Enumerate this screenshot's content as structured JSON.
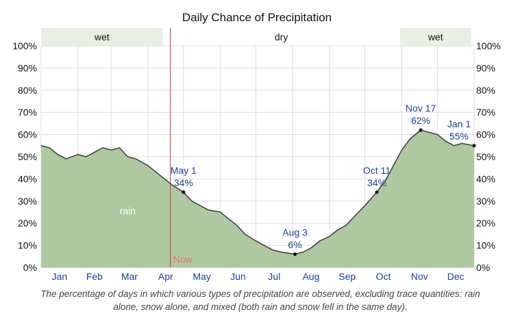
{
  "chart_data": {
    "type": "area",
    "title": "Daily Chance of Precipitation",
    "y_ticks": [
      "0%",
      "10%",
      "20%",
      "30%",
      "40%",
      "50%",
      "60%",
      "70%",
      "80%",
      "90%",
      "100%"
    ],
    "ylim": [
      0,
      100
    ],
    "months": [
      "Jan",
      "Feb",
      "Mar",
      "Apr",
      "May",
      "Jun",
      "Jul",
      "Aug",
      "Sep",
      "Oct",
      "Nov",
      "Dec"
    ],
    "seasons": [
      {
        "label": "wet",
        "start_day": 1,
        "end_day": 42
      },
      {
        "label": "dry",
        "start_day": 42,
        "end_day": 122
      },
      {
        "label": "wet",
        "start_day": 122,
        "end_day": 146
      }
    ],
    "series": [
      {
        "name": "rain",
        "color": "#aec9a0",
        "points": [
          {
            "x": "Jan 1",
            "y": 55
          },
          {
            "x": "Jan 8",
            "y": 54
          },
          {
            "x": "Jan 15",
            "y": 51
          },
          {
            "x": "Jan 22",
            "y": 49
          },
          {
            "x": "Feb 1",
            "y": 51
          },
          {
            "x": "Feb 8",
            "y": 50
          },
          {
            "x": "Feb 15",
            "y": 52
          },
          {
            "x": "Feb 22",
            "y": 54
          },
          {
            "x": "Mar 1",
            "y": 53
          },
          {
            "x": "Mar 8",
            "y": 54
          },
          {
            "x": "Mar 15",
            "y": 50
          },
          {
            "x": "Mar 22",
            "y": 49
          },
          {
            "x": "Apr 1",
            "y": 46
          },
          {
            "x": "Apr 8",
            "y": 43
          },
          {
            "x": "Apr 15",
            "y": 40
          },
          {
            "x": "Apr 22",
            "y": 37
          },
          {
            "x": "May 1",
            "y": 34
          },
          {
            "x": "May 8",
            "y": 30
          },
          {
            "x": "May 15",
            "y": 28
          },
          {
            "x": "May 22",
            "y": 26
          },
          {
            "x": "Jun 1",
            "y": 25
          },
          {
            "x": "Jun 8",
            "y": 22
          },
          {
            "x": "Jun 15",
            "y": 19
          },
          {
            "x": "Jun 22",
            "y": 15
          },
          {
            "x": "Jul 1",
            "y": 12
          },
          {
            "x": "Jul 8",
            "y": 10
          },
          {
            "x": "Jul 15",
            "y": 8
          },
          {
            "x": "Jul 22",
            "y": 7
          },
          {
            "x": "Aug 3",
            "y": 6
          },
          {
            "x": "Aug 10",
            "y": 7
          },
          {
            "x": "Aug 17",
            "y": 9
          },
          {
            "x": "Aug 24",
            "y": 12
          },
          {
            "x": "Sep 1",
            "y": 14
          },
          {
            "x": "Sep 8",
            "y": 17
          },
          {
            "x": "Sep 15",
            "y": 19
          },
          {
            "x": "Sep 22",
            "y": 23
          },
          {
            "x": "Oct 1",
            "y": 28
          },
          {
            "x": "Oct 11",
            "y": 34
          },
          {
            "x": "Oct 18",
            "y": 39
          },
          {
            "x": "Oct 25",
            "y": 46
          },
          {
            "x": "Nov 1",
            "y": 53
          },
          {
            "x": "Nov 8",
            "y": 58
          },
          {
            "x": "Nov 17",
            "y": 62
          },
          {
            "x": "Nov 24",
            "y": 61
          },
          {
            "x": "Dec 1",
            "y": 60
          },
          {
            "x": "Dec 8",
            "y": 57
          },
          {
            "x": "Dec 15",
            "y": 55
          },
          {
            "x": "Dec 22",
            "y": 56
          },
          {
            "x": "Dec 31",
            "y": 55
          }
        ]
      }
    ],
    "area_label": "rain",
    "now": {
      "date": "Apr 20",
      "label": "Now",
      "color": "#c0392b"
    },
    "annotations": [
      {
        "date": "May 1",
        "value": 34,
        "label": "May 1",
        "value_label": "34%",
        "anchor": "above"
      },
      {
        "date": "Aug 3",
        "value": 6,
        "label": "Aug 3",
        "value_label": "6%",
        "anchor": "above"
      },
      {
        "date": "Oct 11",
        "value": 34,
        "label": "Oct 11",
        "value_label": "34%",
        "anchor": "above"
      },
      {
        "date": "Nov 17",
        "value": 62,
        "label": "Nov 17",
        "value_label": "62%",
        "anchor": "above"
      },
      {
        "date": "Jan 1",
        "value": 55,
        "label": "Jan 1",
        "value_label": "55%",
        "anchor": "above-end"
      }
    ],
    "grid": true
  },
  "caption": "The percentage of days in which various types of precipitation are observed, excluding trace quantities: rain alone, snow alone, and mixed (both rain and snow fell in the same day).",
  "colors": {
    "area": "#aec9a0",
    "line": "#444444",
    "grid": "#dcdcdc",
    "season_band": "#e8efe3",
    "month_text": "#1a3f9c"
  }
}
